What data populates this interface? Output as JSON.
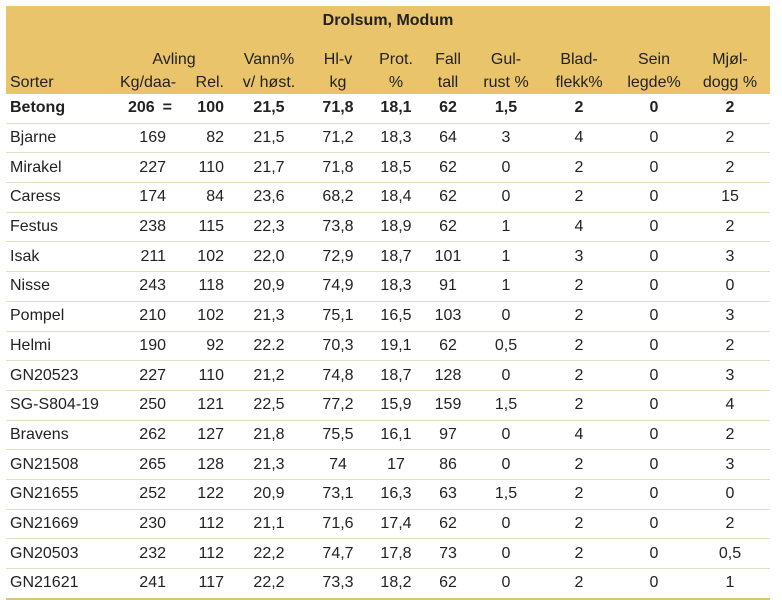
{
  "title": "Drolsum, Modum",
  "headers": {
    "sorter": "Sorter",
    "avling_top": "Avling",
    "kg": "Kg/daa-",
    "rel": "Rel.",
    "vann": [
      "Vann%",
      "v/ høst."
    ],
    "hl": [
      "Hl-v",
      "kg"
    ],
    "prot": [
      "Prot.",
      "%"
    ],
    "fall": [
      "Fall",
      "tall"
    ],
    "gulrust": [
      "Gul-",
      "rust %"
    ],
    "bladflekk": [
      "Blad-",
      "flekk%"
    ],
    "seinlegde": [
      "Sein",
      "legde%"
    ],
    "mjoldogg": [
      "Mjøl-",
      "dogg %"
    ]
  },
  "rows": [
    {
      "sort": "Betong",
      "kg": "206",
      "eq": "=",
      "rel": "100",
      "vann": "21,5",
      "hl": "71,8",
      "prot": "18,1",
      "fall": "62",
      "gulrust": "1,5",
      "bladflekk": "2",
      "seinlegde": "0",
      "mjoldogg": "2"
    },
    {
      "sort": "Bjarne",
      "kg": "169",
      "eq": "",
      "rel": "82",
      "vann": "21,5",
      "hl": "71,2",
      "prot": "18,3",
      "fall": "64",
      "gulrust": "3",
      "bladflekk": "4",
      "seinlegde": "0",
      "mjoldogg": "2"
    },
    {
      "sort": "Mirakel",
      "kg": "227",
      "eq": "",
      "rel": "110",
      "vann": "21,7",
      "hl": "71,8",
      "prot": "18,5",
      "fall": "62",
      "gulrust": "0",
      "bladflekk": "2",
      "seinlegde": "0",
      "mjoldogg": "2"
    },
    {
      "sort": "Caress",
      "kg": "174",
      "eq": "",
      "rel": "84",
      "vann": "23,6",
      "hl": "68,2",
      "prot": "18,4",
      "fall": "62",
      "gulrust": "0",
      "bladflekk": "2",
      "seinlegde": "0",
      "mjoldogg": "15"
    },
    {
      "sort": "Festus",
      "kg": "238",
      "eq": "",
      "rel": "115",
      "vann": "22,3",
      "hl": "73,8",
      "prot": "18,9",
      "fall": "62",
      "gulrust": "1",
      "bladflekk": "4",
      "seinlegde": "0",
      "mjoldogg": "2"
    },
    {
      "sort": "Isak",
      "kg": "211",
      "eq": "",
      "rel": "102",
      "vann": "22,0",
      "hl": "72,9",
      "prot": "18,7",
      "fall": "101",
      "gulrust": "1",
      "bladflekk": "3",
      "seinlegde": "0",
      "mjoldogg": "3"
    },
    {
      "sort": "Nisse",
      "kg": "243",
      "eq": "",
      "rel": "118",
      "vann": "20,9",
      "hl": "74,9",
      "prot": "18,3",
      "fall": "91",
      "gulrust": "1",
      "bladflekk": "2",
      "seinlegde": "0",
      "mjoldogg": "0"
    },
    {
      "sort": "Pompel",
      "kg": "210",
      "eq": "",
      "rel": "102",
      "vann": "21,3",
      "hl": "75,1",
      "prot": "16,5",
      "fall": "103",
      "gulrust": "0",
      "bladflekk": "2",
      "seinlegde": "0",
      "mjoldogg": "3"
    },
    {
      "sort": "Helmi",
      "kg": "190",
      "eq": "",
      "rel": "92",
      "vann": "22.2",
      "hl": "70,3",
      "prot": "19,1",
      "fall": "62",
      "gulrust": "0,5",
      "bladflekk": "2",
      "seinlegde": "0",
      "mjoldogg": "2"
    },
    {
      "sort": "GN20523",
      "kg": "227",
      "eq": "",
      "rel": "110",
      "vann": "21,2",
      "hl": "74,8",
      "prot": "18,7",
      "fall": "128",
      "gulrust": "0",
      "bladflekk": "2",
      "seinlegde": "0",
      "mjoldogg": "3"
    },
    {
      "sort": "SG-S804-19",
      "kg": "250",
      "eq": "",
      "rel": "121",
      "vann": "22,5",
      "hl": "77,2",
      "prot": "15,9",
      "fall": "159",
      "gulrust": "1,5",
      "bladflekk": "2",
      "seinlegde": "0",
      "mjoldogg": "4"
    },
    {
      "sort": "Bravens",
      "kg": "262",
      "eq": "",
      "rel": "127",
      "vann": "21,8",
      "hl": "75,5",
      "prot": "16,1",
      "fall": "97",
      "gulrust": "0",
      "bladflekk": "4",
      "seinlegde": "0",
      "mjoldogg": "2"
    },
    {
      "sort": "GN21508",
      "kg": "265",
      "eq": "",
      "rel": "128",
      "vann": "21,3",
      "hl": "74",
      "prot": "17",
      "fall": "86",
      "gulrust": "0",
      "bladflekk": "2",
      "seinlegde": "0",
      "mjoldogg": "3"
    },
    {
      "sort": "GN21655",
      "kg": "252",
      "eq": "",
      "rel": "122",
      "vann": "20,9",
      "hl": "73,1",
      "prot": "16,3",
      "fall": "63",
      "gulrust": "1,5",
      "bladflekk": "2",
      "seinlegde": "0",
      "mjoldogg": "0"
    },
    {
      "sort": "GN21669",
      "kg": "230",
      "eq": "",
      "rel": "112",
      "vann": "21,1",
      "hl": "71,6",
      "prot": "17,4",
      "fall": "62",
      "gulrust": "0",
      "bladflekk": "2",
      "seinlegde": "0",
      "mjoldogg": "2"
    },
    {
      "sort": "GN20503",
      "kg": "232",
      "eq": "",
      "rel": "112",
      "vann": "22,2",
      "hl": "74,7",
      "prot": "17,8",
      "fall": "73",
      "gulrust": "0",
      "bladflekk": "2",
      "seinlegde": "0",
      "mjoldogg": "0,5"
    },
    {
      "sort": "GN21621",
      "kg": "241",
      "eq": "",
      "rel": "117",
      "vann": "22,2",
      "hl": "73,3",
      "prot": "18,2",
      "fall": "62",
      "gulrust": "0",
      "bladflekk": "2",
      "seinlegde": "0",
      "mjoldogg": "1"
    }
  ],
  "colors": {
    "header_bg": "#e9c46a",
    "row_border": "#e6dcc0"
  }
}
